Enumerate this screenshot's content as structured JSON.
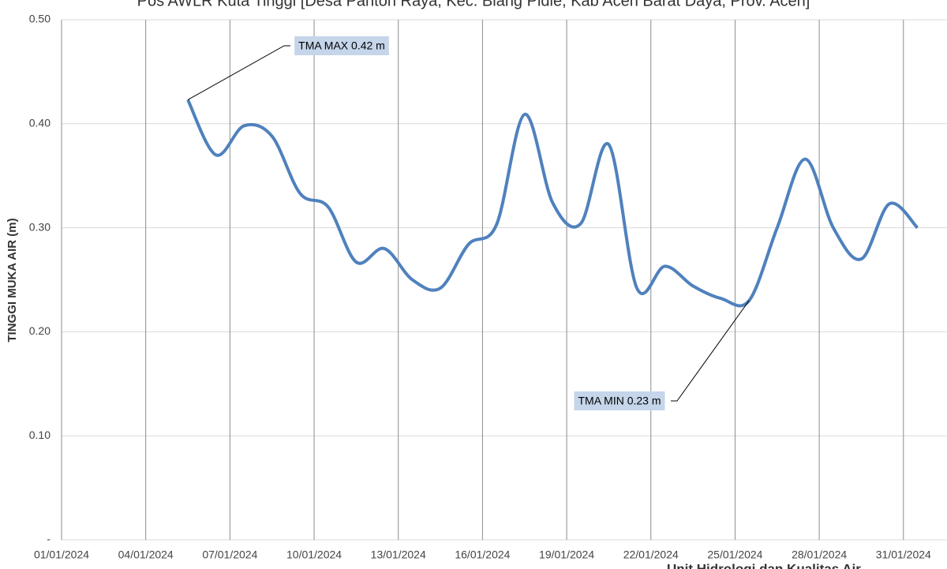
{
  "chart_data": {
    "type": "line",
    "title": "Pos AWLR Kuta Tinggi [Desa Panton Raya, Kec. Blang Pidie, Kab Aceh Barat Daya, Prov. Aceh]",
    "y_label": "TINGGI MUKA AIR (m)",
    "footer": "Unit Hidrologi dan Kualitas Air",
    "x": [
      "05/01/2024",
      "06/01/2024",
      "07/01/2024",
      "08/01/2024",
      "09/01/2024",
      "10/01/2024",
      "11/01/2024",
      "12/01/2024",
      "13/01/2024",
      "14/01/2024",
      "15/01/2024",
      "16/01/2024",
      "17/01/2024",
      "18/01/2024",
      "19/01/2024",
      "20/01/2024",
      "21/01/2024",
      "22/01/2024",
      "23/01/2024",
      "24/01/2024",
      "25/01/2024",
      "26/01/2024",
      "27/01/2024",
      "28/01/2024",
      "29/01/2024",
      "30/01/2024",
      "31/01/2024"
    ],
    "series": [
      {
        "color": "#4f81bd",
        "values": [
          0.423,
          0.37,
          0.398,
          0.388,
          0.333,
          0.32,
          0.267,
          0.28,
          0.25,
          0.242,
          0.284,
          0.303,
          0.409,
          0.324,
          0.304,
          0.38,
          0.242,
          0.263,
          0.244,
          0.232,
          0.23,
          0.3,
          0.366,
          0.3,
          0.27,
          0.323,
          0.3
        ]
      }
    ],
    "ylim": [
      0,
      0.5
    ],
    "yticks": [
      {
        "value": 0,
        "label": "-"
      },
      {
        "value": 0.1,
        "label": "0.10"
      },
      {
        "value": 0.2,
        "label": "0.20"
      },
      {
        "value": 0.3,
        "label": "0.30"
      },
      {
        "value": 0.4,
        "label": "0.40"
      },
      {
        "value": 0.5,
        "label": "0.50"
      }
    ],
    "xticks": [
      "01/01/2024",
      "04/01/2024",
      "07/01/2024",
      "10/01/2024",
      "13/01/2024",
      "16/01/2024",
      "19/01/2024",
      "22/01/2024",
      "25/01/2024",
      "28/01/2024",
      "31/01/2024"
    ],
    "annotations": [
      {
        "text": "TMA MAX 0.42 m",
        "point": 0
      },
      {
        "text": "TMA MIN 0.23 m",
        "point": 20
      }
    ],
    "grid": true
  }
}
